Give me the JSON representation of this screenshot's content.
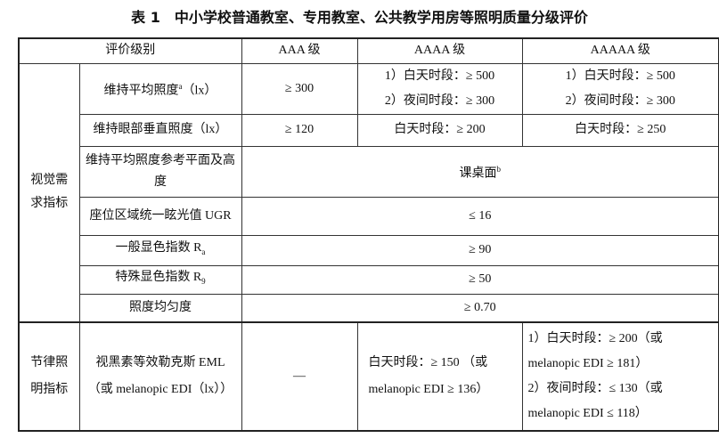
{
  "title": "表 1　中小学校普通教室、专用教室、公共教学用房等照明质量分级评价",
  "header": {
    "level": "评价级别",
    "aaa": "AAA 级",
    "aaaa": "AAAA 级",
    "aaaaa": "AAAAA 级"
  },
  "groups": {
    "visual": "视觉需求指标",
    "circadian": "节律照明指标"
  },
  "rows": [
    {
      "name": "维持平均照度",
      "sup": "a",
      "unit": "（lx）",
      "aaa": "≥ 300",
      "aaaa": [
        "1）白天时段：≥ 500",
        "2）夜间时段：≥ 300"
      ],
      "aaaaa": [
        "1）白天时段：≥ 500",
        "2）夜间时段：≥ 300"
      ]
    },
    {
      "name": "维持眼部垂直照度（lx）",
      "aaa": "≥ 120",
      "aaaa": "白天时段：≥ 200",
      "aaaaa": "白天时段：≥ 250"
    },
    {
      "name": "维持平均照度参考平面及高度",
      "value": "课桌面",
      "sup": "b"
    },
    {
      "name": "座位区域统一眩光值 UGR",
      "value": "≤ 16"
    },
    {
      "name": "一般显色指数 R",
      "sub": "a",
      "value": "≥ 90"
    },
    {
      "name": "特殊显色指数 R",
      "sub": "9",
      "value": "≥ 50"
    },
    {
      "name": "照度均匀度",
      "value": "≥ 0.70"
    },
    {
      "name": [
        "视黑素等效勒克斯 EML",
        "（或 melanopic EDI（lx））"
      ],
      "aaa": "—",
      "aaaa": [
        "白天时段：≥ 150 （或",
        "melanopic EDI ≥ 136）"
      ],
      "aaaaa": [
        "1）白天时段：≥ 200（或",
        "melanopic EDI ≥ 181）",
        "2）夜间时段：≤ 130（或",
        "melanopic EDI ≤ 118）"
      ]
    }
  ]
}
